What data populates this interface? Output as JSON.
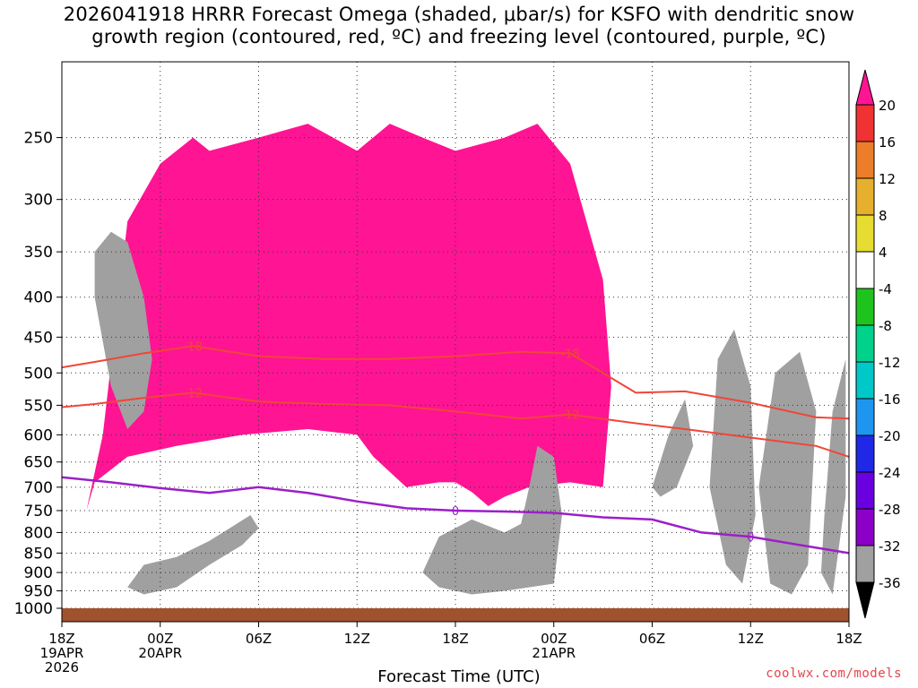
{
  "title": {
    "line1": "2026041918 HRRR Forecast Omega (shaded, μbar/s) for KSFO with dendritic snow",
    "line2": "growth region (contoured, red, ºC) and freezing level (contoured, purple, ºC)"
  },
  "credit": "coolwx.com/models",
  "chart_data": {
    "type": "heatmap",
    "title": "2026041918 HRRR Forecast Omega (shaded, μbar/s) for KSFO with dendritic snow growth region (contoured, red, ºC) and freezing level (contoured, purple, ºC)",
    "xlabel": "Forecast Time (UTC)",
    "ylabel": "",
    "x_range_hours": [
      0,
      48
    ],
    "y_range_mb": [
      1000,
      200
    ],
    "y_scale": "log-pressure",
    "grid": true,
    "x_ticks": [
      {
        "hour": 0,
        "lines": [
          "18Z",
          "19APR",
          "2026"
        ]
      },
      {
        "hour": 6,
        "lines": [
          "00Z",
          "20APR"
        ]
      },
      {
        "hour": 12,
        "lines": [
          "06Z"
        ]
      },
      {
        "hour": 18,
        "lines": [
          "12Z"
        ]
      },
      {
        "hour": 24,
        "lines": [
          "18Z"
        ]
      },
      {
        "hour": 30,
        "lines": [
          "00Z",
          "21APR"
        ]
      },
      {
        "hour": 36,
        "lines": [
          "06Z"
        ]
      },
      {
        "hour": 42,
        "lines": [
          "12Z"
        ]
      },
      {
        "hour": 48,
        "lines": [
          "18Z"
        ]
      }
    ],
    "y_ticks": [
      250,
      300,
      350,
      400,
      450,
      500,
      550,
      600,
      650,
      700,
      750,
      800,
      850,
      900,
      950,
      1000
    ],
    "colorbar": {
      "levels": [
        "-36",
        "-32",
        "-28",
        "-24",
        "-20",
        "-16",
        "-12",
        "-8",
        "-4",
        "4",
        "8",
        "12",
        "16",
        "20"
      ],
      "colors": [
        "#000000",
        "#a0a0a0",
        "#8c00c8",
        "#6a00e0",
        "#1e28e6",
        "#1e96f0",
        "#00c8c8",
        "#00d28c",
        "#1ec31e",
        "#ffffff",
        "#e6dc32",
        "#e6af2d",
        "#ee7d2a",
        "#f03232",
        "#ff1493"
      ]
    },
    "omega_regions": [
      {
        "value": 20,
        "x": [
          1.5,
          2,
          4,
          7,
          11,
          15,
          18,
          19,
          21,
          23,
          24,
          25,
          26,
          27,
          28.5,
          31,
          33,
          33.5,
          33,
          31,
          29,
          27,
          24,
          22,
          20,
          18,
          15,
          12,
          9,
          8,
          6,
          4,
          2.5,
          1.5
        ],
        "y": [
          750,
          690,
          640,
          620,
          600,
          590,
          600,
          640,
          700,
          690,
          690,
          710,
          740,
          720,
          700,
          690,
          700,
          520,
          380,
          270,
          240,
          250,
          260,
          250,
          240,
          260,
          240,
          250,
          260,
          250,
          270,
          320,
          600,
          750
        ]
      },
      {
        "value": -36,
        "x": [
          2,
          3,
          4,
          5,
          5.5,
          5,
          4,
          3,
          2
        ],
        "y": [
          350,
          330,
          340,
          400,
          480,
          560,
          590,
          520,
          400
        ]
      },
      {
        "value": -36,
        "x": [
          4,
          5,
          7,
          9,
          11.5,
          12,
          11,
          9,
          7,
          5
        ],
        "y": [
          940,
          880,
          860,
          820,
          760,
          790,
          830,
          880,
          940,
          960
        ]
      },
      {
        "value": -36,
        "x": [
          22,
          23,
          25,
          27,
          28,
          28.5,
          29,
          30,
          30.5,
          30,
          27,
          25,
          23
        ],
        "y": [
          900,
          810,
          770,
          800,
          780,
          700,
          620,
          640,
          760,
          930,
          950,
          960,
          940
        ]
      },
      {
        "value": -36,
        "x": [
          36,
          37,
          38,
          38.5,
          37.5,
          36.5
        ],
        "y": [
          700,
          600,
          540,
          620,
          700,
          720
        ]
      },
      {
        "value": -36,
        "x": [
          39.5,
          40,
          41,
          42,
          42.3,
          41.5,
          40.5
        ],
        "y": [
          700,
          480,
          440,
          520,
          760,
          930,
          880
        ]
      },
      {
        "value": -36,
        "x": [
          42.5,
          43.5,
          45,
          46,
          45.5,
          44.5,
          43.2
        ],
        "y": [
          700,
          500,
          470,
          560,
          880,
          960,
          930
        ]
      },
      {
        "value": -36,
        "x": [
          46.5,
          47,
          47.8,
          47.8,
          47,
          46.3
        ],
        "y": [
          760,
          560,
          480,
          720,
          960,
          900
        ]
      }
    ],
    "dgz_isotherms": [
      {
        "label": "-18",
        "x": [
          0,
          2,
          5,
          8,
          12,
          16,
          20,
          24,
          28,
          31,
          35,
          38,
          42,
          46,
          48
        ],
        "y": [
          492,
          484,
          472,
          462,
          476,
          480,
          480,
          476,
          470,
          472,
          530,
          528,
          546,
          570,
          572
        ]
      },
      {
        "label": "-12",
        "x": [
          0,
          2,
          5,
          8,
          12,
          16,
          20,
          24,
          28,
          31,
          35,
          38,
          42,
          46,
          48
        ],
        "y": [
          553,
          548,
          538,
          530,
          544,
          548,
          550,
          560,
          572,
          565,
          580,
          590,
          605,
          620,
          640
        ]
      }
    ],
    "freezing_level": {
      "label": "0",
      "x": [
        0,
        3,
        6,
        9,
        12,
        15,
        18,
        21,
        24,
        27,
        30,
        33,
        36,
        39,
        42,
        45,
        48
      ],
      "y": [
        680,
        690,
        702,
        712,
        700,
        712,
        730,
        745,
        750,
        752,
        755,
        765,
        770,
        800,
        810,
        830,
        850
      ]
    }
  }
}
